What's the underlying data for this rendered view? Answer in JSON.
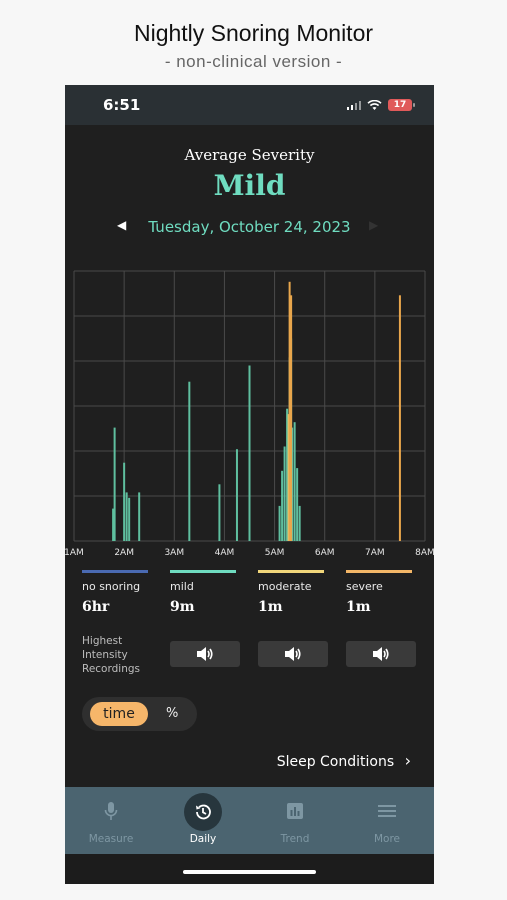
{
  "header": {
    "title": "Nightly Snoring Monitor",
    "subtitle": "- non-clinical version -"
  },
  "status_bar": {
    "time": "6:51",
    "battery": "17"
  },
  "severity": {
    "label": "Average Severity",
    "value": "Mild"
  },
  "date_nav": {
    "date": "Tuesday, October 24, 2023",
    "prev": "◀",
    "next": "▶"
  },
  "chart_data": {
    "type": "bar",
    "x_tick_labels": [
      "1AM",
      "2AM",
      "3AM",
      "4AM",
      "5AM",
      "6AM",
      "7AM",
      "8AM"
    ],
    "series": [
      {
        "color": "#5fbf9f",
        "bars": [
          [
            1.78,
            0.12
          ],
          [
            1.81,
            0.42
          ],
          [
            2.0,
            0.29
          ],
          [
            2.05,
            0.18
          ],
          [
            2.1,
            0.16
          ],
          [
            2.3,
            0.18
          ],
          [
            3.3,
            0.59
          ],
          [
            3.9,
            0.21
          ],
          [
            4.25,
            0.34
          ],
          [
            4.5,
            0.65
          ],
          [
            5.1,
            0.13
          ],
          [
            5.15,
            0.26
          ],
          [
            5.2,
            0.35
          ],
          [
            5.25,
            0.49
          ],
          [
            5.3,
            0.68
          ],
          [
            5.33,
            0.75
          ],
          [
            5.35,
            0.42
          ],
          [
            5.4,
            0.44
          ],
          [
            5.45,
            0.27
          ],
          [
            5.5,
            0.13
          ]
        ]
      },
      {
        "color": "#e4c46c",
        "bars": [
          [
            5.28,
            0.47
          ],
          [
            5.32,
            0.5
          ]
        ]
      },
      {
        "color": "#e8a64c",
        "bars": [
          [
            5.3,
            0.96
          ],
          [
            5.33,
            0.91
          ],
          [
            7.5,
            0.91
          ]
        ]
      }
    ],
    "colors": {
      "none": "#4a6ab2",
      "mild": "#6fdcc0",
      "moderate": "#f1d67a",
      "severe": "#f3b667"
    }
  },
  "legend": [
    {
      "name": "no snoring",
      "value": "6hr",
      "color": "#4a6ab2"
    },
    {
      "name": "mild",
      "value": "9m",
      "color": "#6fdcc0"
    },
    {
      "name": "moderate",
      "value": "1m",
      "color": "#f1d67a"
    },
    {
      "name": "severe",
      "value": "1m",
      "color": "#f3b667"
    }
  ],
  "recordings": {
    "label_lines": [
      "Highest",
      "Intensity",
      "Recordings"
    ]
  },
  "toggle": {
    "time": "time",
    "percent": "%"
  },
  "sleep_conditions": {
    "label": "Sleep Conditions",
    "chevron": "›"
  },
  "tabs": [
    {
      "label": "Measure",
      "icon": "microphone-icon"
    },
    {
      "label": "Daily",
      "icon": "history-icon"
    },
    {
      "label": "Trend",
      "icon": "bar-chart-icon"
    },
    {
      "label": "More",
      "icon": "menu-icon"
    }
  ]
}
